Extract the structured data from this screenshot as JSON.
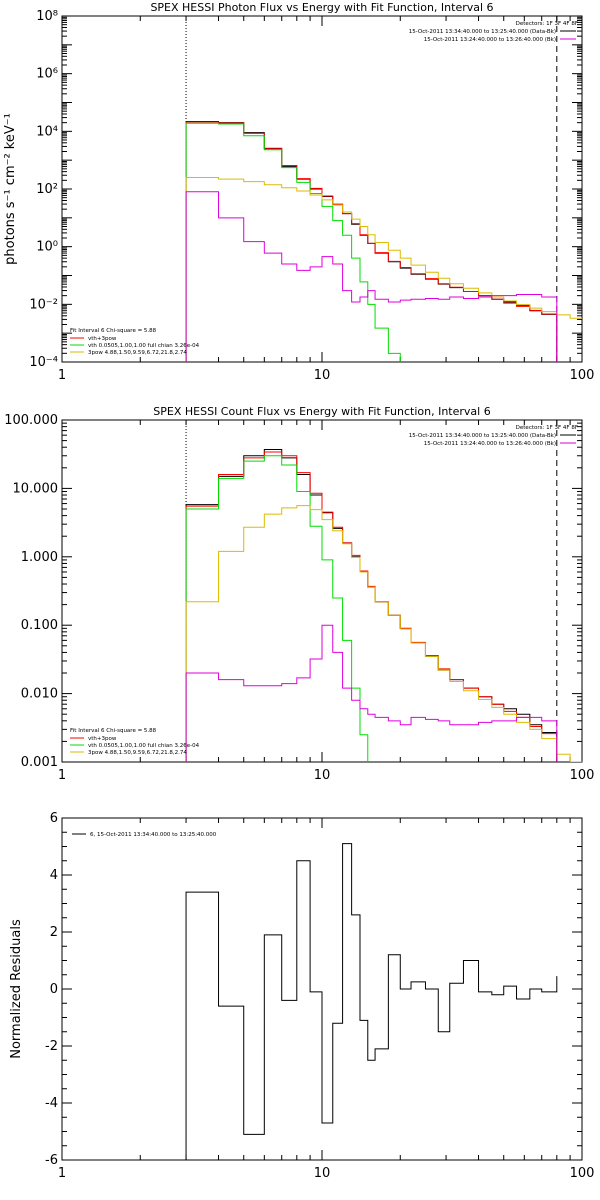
{
  "colors": {
    "data": "#000000",
    "total": "#ff0000",
    "thermal": "#00dd00",
    "powerlaw": "#ddbb00",
    "background": "#dd00dd"
  },
  "chart_data": [
    {
      "type": "line",
      "title": "SPEX HESSI Photon Flux vs Energy with Fit Function, Interval 6",
      "xlabel": "",
      "ylabel": "photons s⁻¹ cm⁻² keV⁻¹",
      "xscale": "log",
      "yscale": "log",
      "xlim": [
        1,
        100
      ],
      "ylim": [
        0.0001,
        100000000
      ],
      "xticks": [
        1,
        10,
        100
      ],
      "xtick_labels": [
        "1",
        "10",
        "100"
      ],
      "yticks": [
        0.0001,
        0.01,
        1,
        100,
        10000,
        1000000,
        100000000
      ],
      "ytick_labels": [
        "10⁻⁴",
        "10⁻²",
        "10⁰",
        "10²",
        "10⁴",
        "10⁶",
        "10⁸"
      ],
      "vlines": [
        3,
        80
      ],
      "legend_top_right": {
        "detectors": "Detectors: 1F 3F 4F 8F",
        "entries": [
          {
            "text": "15-Oct-2011 13:34:40.000 to 13:25:40.000 (Data-Bk)",
            "color": "#000000"
          },
          {
            "text": "15-Oct-2011 13:24:40.000 to 13:26:40.000 (Bk)",
            "color": "#dd00dd"
          }
        ]
      },
      "legend_bottom_left": {
        "header": "Fit Interval 6   Chi-square = 5.88",
        "entries": [
          {
            "text": "vth+3pow",
            "color": "#ff0000"
          },
          {
            "text": "vth 0.0505,1.00,1.00  full chian 3.26e-04",
            "color": "#00dd00"
          },
          {
            "text": "3pow 4.88,1.50,9.59,6.72,21.8,2.74",
            "color": "#ddbb00"
          }
        ]
      },
      "edges": [
        3,
        4,
        5,
        6,
        7,
        8,
        9,
        10,
        11,
        12,
        13,
        14,
        15,
        16,
        18,
        20,
        22,
        25,
        28,
        31,
        35,
        40,
        45,
        50,
        56,
        63,
        70,
        80,
        90,
        100
      ],
      "series": [
        {
          "name": "Data-Bk",
          "color": "#000000",
          "values": [
            22000,
            20000,
            9000,
            2500,
            600,
            220,
            100,
            55,
            28,
            14,
            6,
            2.5,
            1.3,
            0.6,
            0.3,
            0.18,
            0.11,
            0.075,
            0.05,
            0.038,
            0.028,
            0.02,
            0.015,
            0.012,
            0.009,
            0.006,
            0.0045,
            null,
            null
          ]
        },
        {
          "name": "vth+3pow",
          "color": "#ff0000",
          "values": [
            21000,
            19500,
            8500,
            2600,
            650,
            230,
            105,
            57,
            30,
            14,
            6.3,
            2.6,
            1.3,
            0.62,
            0.31,
            0.19,
            0.115,
            0.078,
            0.052,
            0.039,
            0.028,
            0.02,
            0.015,
            0.011,
            0.0085,
            0.0062,
            0.0046,
            null,
            null
          ]
        },
        {
          "name": "vth",
          "color": "#00dd00",
          "values": [
            19000,
            18000,
            7000,
            2300,
            550,
            170,
            70,
            25,
            8,
            2.5,
            0.4,
            0.06,
            0.01,
            0.0015,
            0.0002,
            3e-05,
            null,
            null,
            null,
            null,
            null,
            null,
            null,
            null,
            null,
            null,
            null,
            null,
            null
          ]
        },
        {
          "name": "3pow",
          "color": "#ddbb00",
          "values": [
            250,
            220,
            180,
            140,
            110,
            85,
            62,
            42,
            28,
            16,
            9,
            5,
            2.6,
            1.4,
            0.75,
            0.4,
            0.23,
            0.13,
            0.08,
            0.052,
            0.036,
            0.025,
            0.018,
            0.013,
            0.0098,
            0.0074,
            0.0056,
            0.0043,
            0.0033
          ]
        },
        {
          "name": "Bk",
          "color": "#dd00dd",
          "values": [
            80,
            10,
            1.5,
            0.6,
            0.25,
            0.15,
            0.2,
            0.45,
            0.25,
            0.03,
            0.012,
            0.018,
            0.03,
            0.015,
            0.012,
            0.014,
            0.015,
            0.016,
            0.015,
            0.018,
            0.016,
            0.018,
            0.02,
            0.02,
            0.022,
            0.022,
            0.018,
            null,
            null
          ]
        }
      ]
    },
    {
      "type": "line",
      "title": "SPEX HESSI Count Flux vs Energy with Fit Function, Interval 6",
      "xlabel": "",
      "ylabel": "",
      "xscale": "log",
      "yscale": "log",
      "xlim": [
        1,
        100
      ],
      "ylim": [
        0.001,
        100
      ],
      "xticks": [
        1,
        10,
        100
      ],
      "xtick_labels": [
        "1",
        "10",
        "100"
      ],
      "yticks": [
        0.001,
        0.01,
        0.1,
        1,
        10,
        100
      ],
      "ytick_labels": [
        "0.001",
        "0.010",
        "0.100",
        "1.000",
        "10.000",
        "100.000"
      ],
      "vlines": [
        3,
        80
      ],
      "legend_top_right": {
        "detectors": "Detectors: 1F 3F 4F 8F",
        "entries": [
          {
            "text": "15-Oct-2011 13:34:40.000 to 13:25:40.000 (Data-Bk)",
            "color": "#000000"
          },
          {
            "text": "15-Oct-2011 13:24:40.000 to 13:26:40.000 (Bk)",
            "color": "#dd00dd"
          }
        ]
      },
      "legend_bottom_left": {
        "header": "Fit Interval 6   Chi-square = 5.88",
        "entries": [
          {
            "text": "vth+3pow",
            "color": "#ff0000"
          },
          {
            "text": "vth 0.0505,1.00,1.00  full chian 3.26e-04",
            "color": "#00dd00"
          },
          {
            "text": "3pow 4.88,1.50,9.59,6.72,21.8,2.74",
            "color": "#ddbb00"
          }
        ]
      },
      "edges": [
        3,
        4,
        5,
        6,
        7,
        8,
        9,
        10,
        11,
        12,
        13,
        14,
        15,
        16,
        18,
        20,
        22,
        25,
        28,
        31,
        35,
        40,
        45,
        50,
        56,
        63,
        70,
        80,
        90,
        100
      ],
      "series": [
        {
          "name": "Data-Bk",
          "color": "#000000",
          "values": [
            5.8,
            15,
            30,
            37,
            28,
            16,
            8,
            4.4,
            2.6,
            1.6,
            1.0,
            0.6,
            0.36,
            0.22,
            0.14,
            0.09,
            0.055,
            0.035,
            0.022,
            0.016,
            0.012,
            0.009,
            0.007,
            0.006,
            0.005,
            0.0035,
            0.0027,
            null,
            null
          ]
        },
        {
          "name": "vth+3pow",
          "color": "#ff0000",
          "values": [
            5.5,
            16,
            28,
            34,
            30,
            17,
            8.5,
            4.5,
            2.7,
            1.6,
            1.05,
            0.62,
            0.37,
            0.22,
            0.14,
            0.09,
            0.056,
            0.036,
            0.023,
            0.016,
            0.012,
            0.009,
            0.007,
            0.0055,
            0.0045,
            0.0033,
            0.0026,
            null,
            null
          ]
        },
        {
          "name": "vth",
          "color": "#00dd00",
          "values": [
            5.0,
            14,
            25,
            30,
            22,
            9,
            2.8,
            0.9,
            0.25,
            0.06,
            0.012,
            0.0025,
            0.0006,
            null,
            null,
            null,
            null,
            null,
            null,
            null,
            null,
            null,
            null,
            null,
            null,
            null,
            null,
            null,
            null
          ]
        },
        {
          "name": "3pow",
          "color": "#ddbb00",
          "values": [
            0.22,
            1.2,
            2.7,
            4.2,
            5.2,
            5.6,
            4.9,
            3.5,
            2.4,
            1.55,
            0.98,
            0.6,
            0.36,
            0.22,
            0.14,
            0.088,
            0.055,
            0.035,
            0.022,
            0.015,
            0.011,
            0.0082,
            0.0063,
            0.005,
            0.0038,
            0.003,
            0.0022,
            0.0013,
            0.001
          ]
        },
        {
          "name": "Bk",
          "color": "#dd00dd",
          "values": [
            0.02,
            0.016,
            0.013,
            0.013,
            0.014,
            0.017,
            0.032,
            0.1,
            0.04,
            0.012,
            0.008,
            0.006,
            0.005,
            0.0045,
            0.004,
            0.0035,
            0.0045,
            0.0042,
            0.004,
            0.0035,
            0.0035,
            0.0038,
            0.004,
            0.004,
            0.0045,
            0.0045,
            0.004,
            null,
            null
          ]
        }
      ]
    },
    {
      "type": "line",
      "title": "",
      "xlabel": "",
      "ylabel": "Normalized Residuals",
      "xscale": "log",
      "yscale": "linear",
      "xlim": [
        1,
        100
      ],
      "ylim": [
        -6,
        6
      ],
      "xticks": [
        1,
        10,
        100
      ],
      "xtick_labels": [
        "1",
        "10",
        "100"
      ],
      "yticks": [
        -6,
        -4,
        -2,
        0,
        2,
        4,
        6
      ],
      "ytick_labels": [
        "-6",
        "-4",
        "-2",
        "0",
        "2",
        "4",
        "6"
      ],
      "legend": [
        {
          "text": "6, 15-Oct-2011 13:34:40.000 to 13:25:40.000",
          "color": "#000000"
        }
      ],
      "edges": [
        3,
        4,
        5,
        6,
        7,
        8,
        9,
        10,
        11,
        12,
        13,
        14,
        15,
        16,
        18,
        20,
        22,
        25,
        28,
        31,
        35,
        40,
        45,
        50,
        56,
        63,
        70,
        80
      ],
      "series": [
        {
          "name": "6, 15-Oct-2011 13:34:40.000 to 13:25:40.000",
          "color": "#000000",
          "values": [
            3.4,
            -0.6,
            -5.1,
            1.9,
            -0.4,
            4.5,
            -0.1,
            -4.7,
            -1.2,
            5.1,
            2.6,
            -1.1,
            -2.5,
            -2.1,
            1.2,
            0.0,
            0.25,
            0.0,
            -1.5,
            0.2,
            1.0,
            -0.1,
            -0.2,
            0.1,
            -0.35,
            0.0,
            -0.1,
            0.45
          ]
        }
      ]
    }
  ]
}
